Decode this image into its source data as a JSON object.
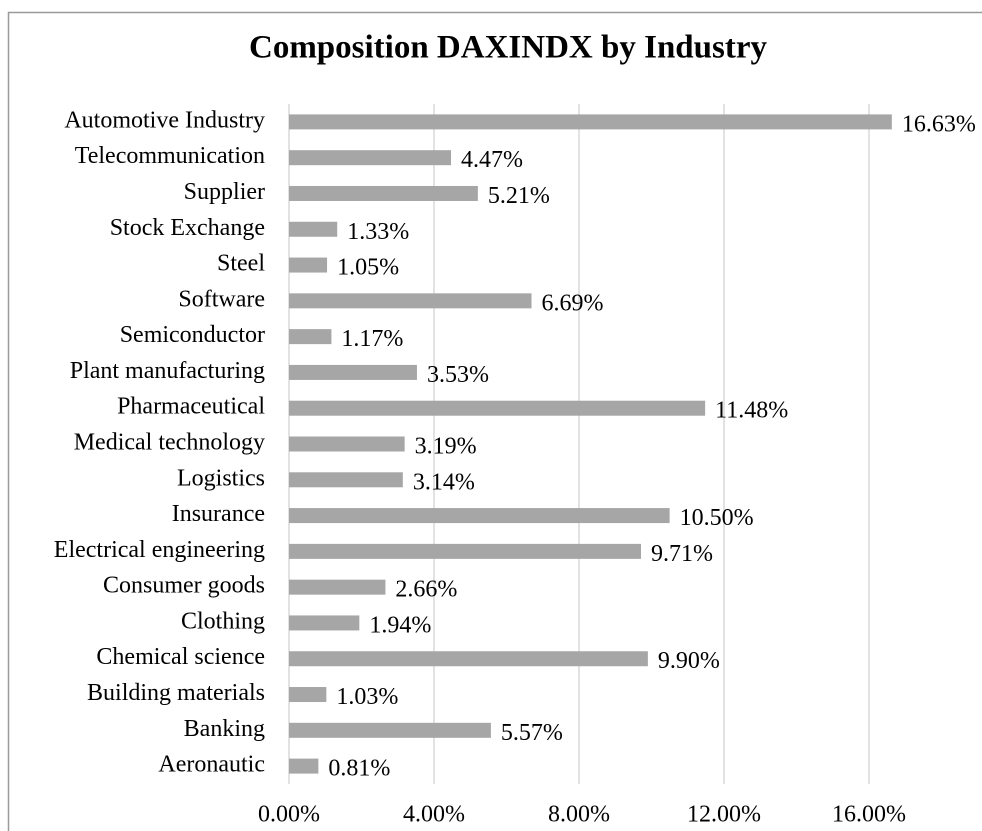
{
  "chart_data": {
    "type": "hbar",
    "title": "Composition DAXINDX by Industry",
    "categories": [
      "Automotive Industry",
      "Telecommunication",
      "Supplier",
      "Stock Exchange",
      "Steel",
      "Software",
      "Semiconductor",
      "Plant manufacturing",
      "Pharmaceutical",
      "Medical technology",
      "Logistics",
      "Insurance",
      "Electrical engineering",
      "Consumer goods",
      "Clothing",
      "Chemical science",
      "Building materials",
      "Banking",
      "Aeronautic"
    ],
    "values": [
      16.63,
      4.47,
      5.21,
      1.33,
      1.05,
      6.69,
      1.17,
      3.53,
      11.48,
      3.19,
      3.14,
      10.5,
      9.71,
      2.66,
      1.94,
      9.9,
      1.03,
      5.57,
      0.81
    ],
    "value_labels": [
      "16.63%",
      "4.47%",
      "5.21%",
      "1.33%",
      "1.05%",
      "6.69%",
      "1.17%",
      "3.53%",
      "11.48%",
      "3.19%",
      "3.14%",
      "10.50%",
      "9.71%",
      "2.66%",
      "1.94%",
      "9.90%",
      "1.03%",
      "5.57%",
      "0.81%"
    ],
    "color": "#a6a6a6",
    "xlim": [
      0,
      18
    ],
    "xticks": [
      {
        "value": 0,
        "label": "0.00%"
      },
      {
        "value": 4,
        "label": "4.00%"
      },
      {
        "value": 8,
        "label": "8.00%"
      },
      {
        "value": 12,
        "label": "12.00%"
      },
      {
        "value": 16,
        "label": "16.00%"
      }
    ],
    "grid": true
  }
}
